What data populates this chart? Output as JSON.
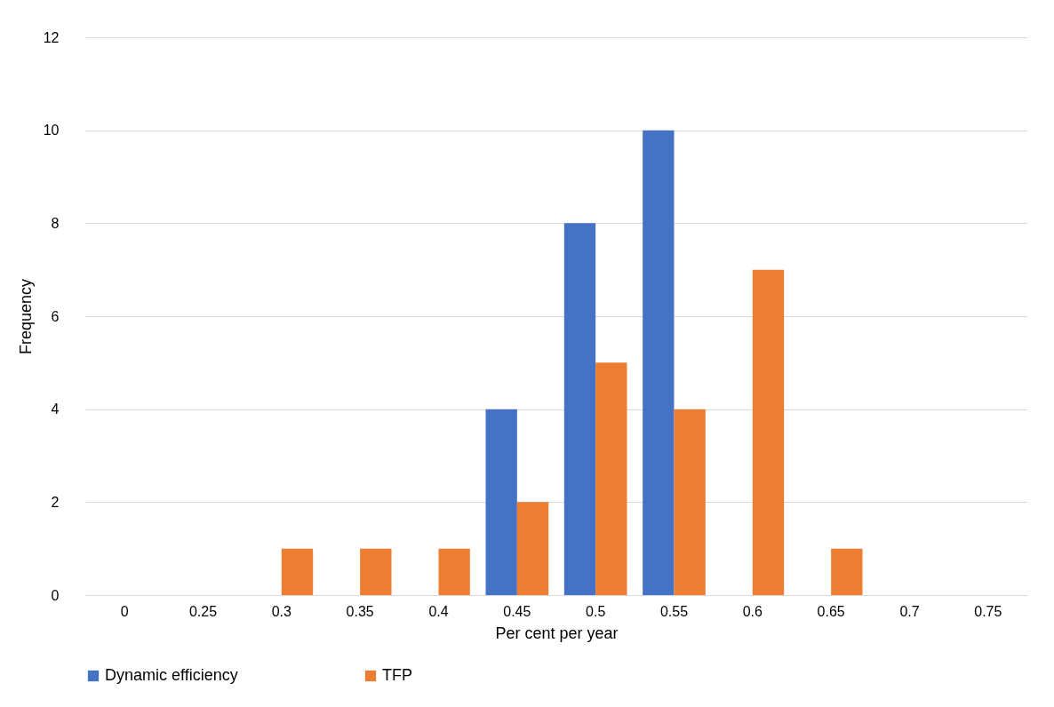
{
  "chart_data": {
    "type": "bar",
    "xlabel": "Per cent per year",
    "ylabel": "Frequency",
    "categories": [
      "0",
      "0.25",
      "0.3",
      "0.35",
      "0.4",
      "0.45",
      "0.5",
      "0.55",
      "0.6",
      "0.65",
      "0.7",
      "0.75"
    ],
    "series": [
      {
        "name": "Dynamic efficiency",
        "color": "#4472c4",
        "values": [
          0,
          0,
          0,
          0,
          0,
          4,
          8,
          10,
          0,
          0,
          0,
          0
        ]
      },
      {
        "name": "TFP",
        "color": "#ed7d31",
        "values": [
          0,
          0,
          1,
          1,
          1,
          2,
          5,
          4,
          7,
          1,
          0,
          0
        ]
      }
    ],
    "ylim": [
      0,
      12
    ],
    "yticks": [
      0,
      2,
      4,
      6,
      8,
      10,
      12
    ],
    "grid": "y",
    "legend": "bottom"
  }
}
